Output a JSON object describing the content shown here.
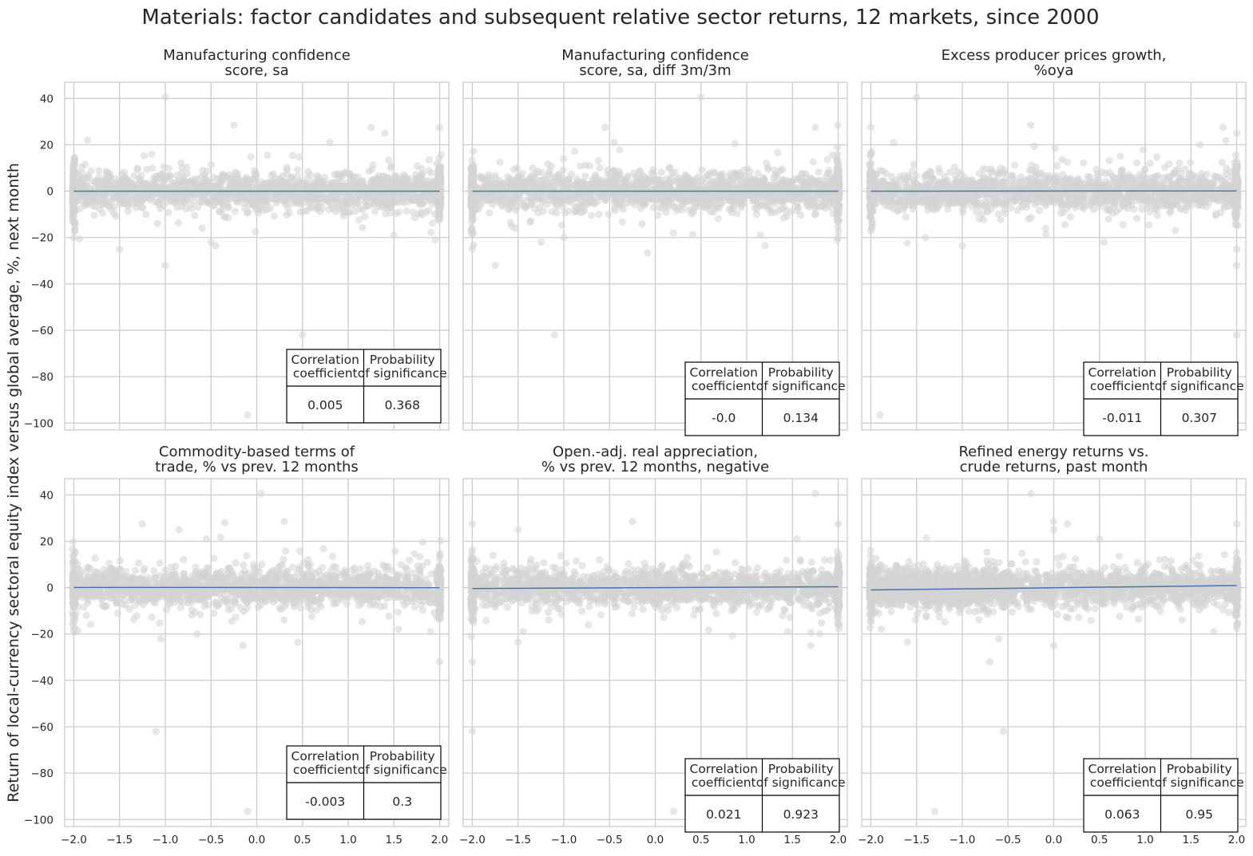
{
  "chart_data": {
    "type": "scatter",
    "title": "Materials: factor candidates and subsequent relative sector returns, 12 markets, since 2000",
    "ylabel": "Return of local-currency sectoral equity index versus global average, %, next month",
    "xlim": [
      -2.1,
      2.1
    ],
    "ylim": [
      -103,
      47
    ],
    "xticks": [
      -2.0,
      -1.5,
      -1.0,
      -0.5,
      0.0,
      0.5,
      1.0,
      1.5,
      2.0
    ],
    "xtick_labels": [
      "−2.0",
      "−1.5",
      "−1.0",
      "−0.5",
      "0.0",
      "0.5",
      "1.0",
      "1.5",
      "2.0"
    ],
    "yticks": [
      40,
      20,
      0,
      -20,
      -40,
      -60,
      -80,
      -100
    ],
    "ytick_labels": [
      "40",
      "20",
      "0",
      "−20",
      "−40",
      "−60",
      "−80",
      "−100"
    ],
    "grid": true,
    "table_headers": [
      [
        "Correlation",
        "coefficient"
      ],
      [
        "Probability",
        "of significance"
      ]
    ],
    "panels": [
      {
        "title": [
          "Manufacturing confidence",
          "score, sa"
        ],
        "correlation": "0.005",
        "probability": "0.368",
        "fit_line": {
          "x": [
            -2.0,
            2.0
          ],
          "y": [
            0.0,
            0.0
          ]
        },
        "outliers": [
          [
            -1.0,
            40.5
          ],
          [
            -0.25,
            28.5
          ],
          [
            1.25,
            27.5
          ],
          [
            2.0,
            27.5
          ],
          [
            1.4,
            25
          ],
          [
            0.8,
            21
          ],
          [
            -1.85,
            22
          ],
          [
            -1.5,
            -25
          ],
          [
            -1.0,
            -32
          ],
          [
            -0.5,
            -22
          ],
          [
            -0.45,
            -23.5
          ],
          [
            0.5,
            -62
          ],
          [
            -0.1,
            -96.5
          ],
          [
            -2.0,
            -20
          ],
          [
            1.95,
            -21
          ],
          [
            1.5,
            -19
          ]
        ]
      },
      {
        "title": [
          "Manufacturing confidence",
          "score, sa, diff 3m/3m"
        ],
        "correlation": "-0.0",
        "probability": "0.134",
        "fit_line": {
          "x": [
            -2.0,
            2.0
          ],
          "y": [
            0.0,
            0.0
          ]
        },
        "outliers": [
          [
            0.5,
            40.5
          ],
          [
            2.0,
            28.5
          ],
          [
            1.75,
            27.5
          ],
          [
            -0.55,
            27.5
          ],
          [
            -0.45,
            21
          ],
          [
            -2.0,
            -25
          ],
          [
            -1.75,
            -32
          ],
          [
            -1.1,
            -62
          ],
          [
            -1.25,
            -22
          ],
          [
            1.2,
            -23.5
          ],
          [
            -1.0,
            -20
          ],
          [
            0.2,
            -18
          ],
          [
            1.15,
            -19
          ],
          [
            2.0,
            -20
          ]
        ]
      },
      {
        "title": [
          "Excess producer prices growth,",
          "%oya"
        ],
        "correlation": "-0.011",
        "probability": "0.307",
        "fit_line": {
          "x": [
            -2.0,
            2.0
          ],
          "y": [
            0.0,
            0.1
          ]
        },
        "outliers": [
          [
            -1.5,
            40.5
          ],
          [
            -0.25,
            28.5
          ],
          [
            1.85,
            27.5
          ],
          [
            -2.0,
            27.5
          ],
          [
            2.0,
            25
          ],
          [
            -1.75,
            21
          ],
          [
            1.6,
            20
          ],
          [
            -1.0,
            -23.5
          ],
          [
            0.55,
            -22
          ],
          [
            2.0,
            -62
          ],
          [
            -1.9,
            -96.5
          ],
          [
            2.0,
            -32
          ],
          [
            2.0,
            -25
          ],
          [
            -2.0,
            -17
          ]
        ]
      },
      {
        "title": [
          "Commodity-based terms of",
          "trade, % vs prev. 12 months"
        ],
        "correlation": "-0.003",
        "probability": "0.3",
        "fit_line": {
          "x": [
            -2.0,
            2.0
          ],
          "y": [
            0.1,
            0.0
          ]
        },
        "outliers": [
          [
            0.05,
            40.5
          ],
          [
            0.3,
            28.5
          ],
          [
            -1.25,
            27.5
          ],
          [
            -0.35,
            28
          ],
          [
            -0.85,
            25
          ],
          [
            -0.55,
            21
          ],
          [
            -1.1,
            -62
          ],
          [
            -0.15,
            -25
          ],
          [
            -1.05,
            -22
          ],
          [
            0.45,
            -23.5
          ],
          [
            -0.65,
            -20
          ],
          [
            2.0,
            -32
          ],
          [
            -0.1,
            -96.5
          ],
          [
            1.9,
            -19
          ],
          [
            1.55,
            -18
          ]
        ]
      },
      {
        "title": [
          "Open.-adj. real appreciation,",
          "% vs prev. 12 months, negative"
        ],
        "correlation": "0.021",
        "probability": "0.923",
        "fit_line": {
          "x": [
            -2.0,
            2.0
          ],
          "y": [
            -0.4,
            0.4
          ]
        },
        "outliers": [
          [
            1.75,
            40.5
          ],
          [
            -2.0,
            27.5
          ],
          [
            -0.25,
            28.5
          ],
          [
            2.0,
            27.5
          ],
          [
            -1.5,
            25
          ],
          [
            1.55,
            21
          ],
          [
            -2.0,
            -32
          ],
          [
            -2.0,
            -62
          ],
          [
            -1.5,
            -23.5
          ],
          [
            1.8,
            -20
          ],
          [
            1.7,
            -25
          ],
          [
            0.2,
            -96.5
          ],
          [
            1.45,
            -19
          ]
        ]
      },
      {
        "title": [
          "Refined energy returns vs.",
          "crude returns, past month"
        ],
        "correlation": "0.063",
        "probability": "0.95",
        "fit_line": {
          "x": [
            -2.0,
            2.0
          ],
          "y": [
            -1.0,
            0.9
          ]
        },
        "outliers": [
          [
            -0.25,
            40.5
          ],
          [
            0.0,
            28.5
          ],
          [
            0.15,
            27.5
          ],
          [
            2.0,
            27.5
          ],
          [
            0.0,
            25
          ],
          [
            0.5,
            21
          ],
          [
            -0.7,
            -32
          ],
          [
            -0.55,
            -62
          ],
          [
            -1.3,
            -96.5
          ],
          [
            -0.6,
            -22
          ],
          [
            0.0,
            -25
          ],
          [
            -1.6,
            -23.5
          ],
          [
            1.75,
            -19
          ],
          [
            2.0,
            -16
          ]
        ]
      }
    ]
  }
}
